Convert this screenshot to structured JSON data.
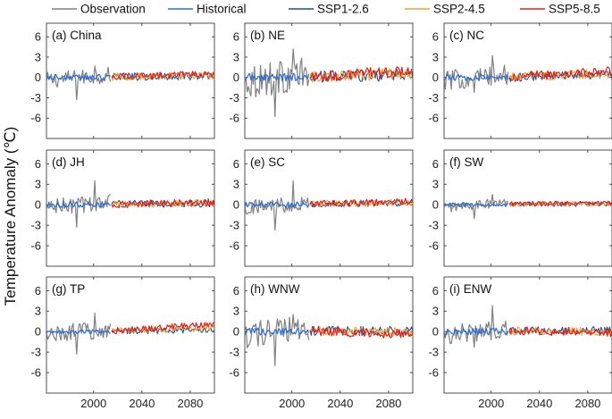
{
  "legend": [
    {
      "label": "Observation",
      "color": "#808080"
    },
    {
      "label": "Historical",
      "color": "#2f6fd0"
    },
    {
      "label": "SSP1-2.6",
      "color": "#1f4e96"
    },
    {
      "label": "SSP2-4.5",
      "color": "#f0a030"
    },
    {
      "label": "SSP5-8.5",
      "color": "#e0201b"
    }
  ],
  "ylabel": "Temperature Anomaly (℃)",
  "chart_data": {
    "type": "line",
    "xlim": [
      1961,
      2100
    ],
    "ylim": [
      -9,
      8
    ],
    "xticks": [
      2000,
      2040,
      2080
    ],
    "yticks": [
      6,
      3,
      0,
      -3,
      -6
    ],
    "grid": false,
    "legend_position": "top",
    "series_periods": {
      "Observation": [
        1961,
        2014
      ],
      "Historical": [
        1961,
        2014
      ],
      "SSP1-2.6": [
        2015,
        2100
      ],
      "SSP2-4.5": [
        2015,
        2100
      ],
      "SSP5-8.5": [
        2015,
        2100
      ]
    },
    "panels": [
      {
        "title": "(a) China",
        "obs_amp": 1.2,
        "obs_peak": [
          1.7,
          -3.3
        ],
        "hist_amp": 0.45,
        "ssp_amp": 0.55,
        "trend": [
          0.1,
          0.2,
          0.35
        ]
      },
      {
        "title": "(b) NE",
        "obs_amp": 2.6,
        "obs_peak": [
          4.2,
          -5.8
        ],
        "hist_amp": 0.6,
        "ssp_amp": 0.85,
        "trend": [
          0.3,
          0.5,
          0.9
        ]
      },
      {
        "title": "(c) NC",
        "obs_amp": 1.5,
        "obs_peak": [
          3.2,
          -2.2
        ],
        "hist_amp": 0.5,
        "ssp_amp": 0.7,
        "trend": [
          0.3,
          0.5,
          0.8
        ]
      },
      {
        "title": "(d) JH",
        "obs_amp": 1.3,
        "obs_peak": [
          3.5,
          -3.3
        ],
        "hist_amp": 0.45,
        "ssp_amp": 0.55,
        "trend": [
          0.1,
          0.15,
          0.25
        ]
      },
      {
        "title": "(e) SC",
        "obs_amp": 1.2,
        "obs_peak": [
          3.5,
          -3.7
        ],
        "hist_amp": 0.4,
        "ssp_amp": 0.5,
        "trend": [
          0.2,
          0.25,
          0.35
        ]
      },
      {
        "title": "(f) SW",
        "obs_amp": 0.7,
        "obs_peak": [
          1.5,
          -2.0
        ],
        "hist_amp": 0.3,
        "ssp_amp": 0.35,
        "trend": [
          0.0,
          0.05,
          0.1
        ]
      },
      {
        "title": "(g) TP",
        "obs_amp": 1.3,
        "obs_peak": [
          2.7,
          -3.3
        ],
        "hist_amp": 0.3,
        "ssp_amp": 0.45,
        "trend": [
          0.1,
          0.4,
          1.0
        ]
      },
      {
        "title": "(h) WNW",
        "obs_amp": 2.0,
        "obs_peak": [
          2.5,
          -5.0
        ],
        "hist_amp": 0.55,
        "ssp_amp": 0.7,
        "trend": [
          0.0,
          -0.2,
          -0.5
        ]
      },
      {
        "title": "(i) ENW",
        "obs_amp": 1.4,
        "obs_peak": [
          3.8,
          -2.3
        ],
        "hist_amp": 0.5,
        "ssp_amp": 0.6,
        "trend": [
          0.0,
          -0.1,
          -0.25
        ]
      }
    ]
  }
}
